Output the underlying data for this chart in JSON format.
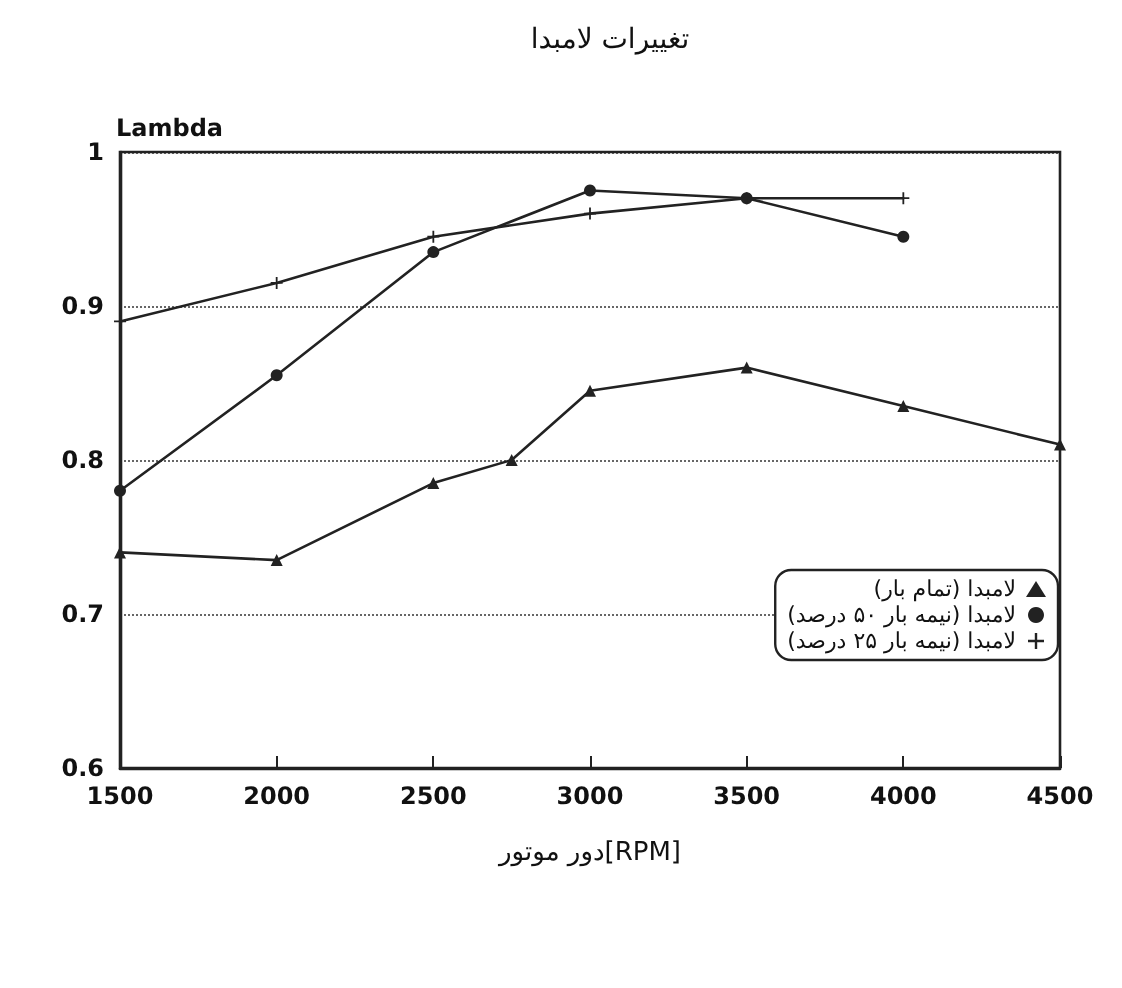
{
  "chart_data": {
    "type": "line",
    "title": "تغییرات لامبدا",
    "xlabel": "دور موتور[RPM]",
    "ylabel": "Lambda",
    "xlim": [
      1500,
      4500
    ],
    "xticks": [
      1500,
      2000,
      2500,
      3000,
      3500,
      4000,
      4500
    ],
    "ylim": [
      0.6,
      1
    ],
    "yticks": [
      0.6,
      0.7,
      0.8,
      0.9,
      1
    ],
    "grid": "y",
    "legend": "right",
    "line_style": "solid",
    "series": [
      {
        "name": "لامبدا (تمام بار)",
        "color": "#222222",
        "marker": "triangle",
        "x": [
          1500,
          2000,
          2500,
          2750,
          3000,
          3500,
          4000,
          4500
        ],
        "values": [
          0.74,
          0.735,
          0.785,
          0.8,
          0.845,
          0.86,
          0.835,
          0.81
        ]
      },
      {
        "name": "لامبدا (نیمه بار ۵۰ درصد)",
        "color": "#222222",
        "marker": "circle",
        "x": [
          1500,
          2000,
          2500,
          3000,
          3500,
          4000
        ],
        "values": [
          0.78,
          0.855,
          0.935,
          0.975,
          0.97,
          0.945
        ]
      },
      {
        "name": "لامبدا (نیمه بار ۲۵ درصد)",
        "color": "#222222",
        "marker": "cross",
        "x": [
          1500,
          2000,
          2500,
          3000,
          3500,
          4000
        ],
        "values": [
          0.89,
          0.915,
          0.945,
          0.96,
          0.97,
          0.97
        ]
      }
    ]
  }
}
